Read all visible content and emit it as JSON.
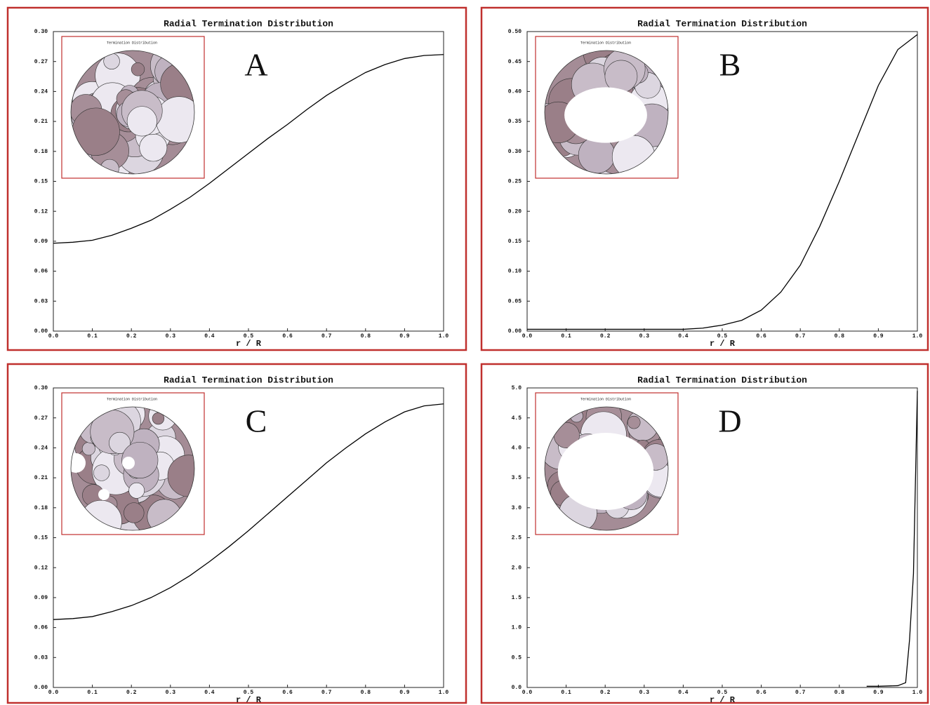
{
  "chart_data": [
    {
      "type": "line",
      "title": "Radial Termination Distribution",
      "label": "A",
      "inset_title": "Termination Distribution",
      "xlabel": "r / R",
      "x": [
        0,
        0.05,
        0.1,
        0.15,
        0.2,
        0.25,
        0.3,
        0.35,
        0.4,
        0.45,
        0.5,
        0.55,
        0.6,
        0.65,
        0.7,
        0.75,
        0.8,
        0.85,
        0.9,
        0.95,
        1.0
      ],
      "values": [
        0.088,
        0.089,
        0.091,
        0.096,
        0.103,
        0.111,
        0.122,
        0.134,
        0.148,
        0.163,
        0.178,
        0.193,
        0.207,
        0.222,
        0.236,
        0.248,
        0.259,
        0.267,
        0.273,
        0.276,
        0.277
      ],
      "color": "#000000",
      "xlim": [
        0,
        1
      ],
      "ylim": [
        0,
        0.3
      ],
      "xticks": [
        {
          "value": 0,
          "label": "0.0"
        },
        0.1,
        0.2,
        0.3,
        0.4,
        0.5,
        0.6,
        0.7,
        0.8,
        0.9,
        {
          "value": 1,
          "label": "1.0"
        }
      ],
      "yticks": [
        {
          "value": 0,
          "label": "0.00"
        },
        0.03,
        0.06,
        0.09,
        0.12,
        0.15,
        0.18,
        0.21,
        0.24,
        0.27,
        {
          "value": 0.3,
          "label": "0.30"
        }
      ]
    },
    {
      "type": "line",
      "title": "Radial Termination Distribution",
      "label": "B",
      "inset_title": "Termination Distribution",
      "xlabel": "r / R",
      "x": [
        0,
        0.05,
        0.1,
        0.15,
        0.2,
        0.25,
        0.3,
        0.35,
        0.4,
        0.45,
        0.5,
        0.55,
        0.6,
        0.65,
        0.7,
        0.75,
        0.8,
        0.85,
        0.9,
        0.95,
        1.0
      ],
      "values": [
        0.003,
        0.003,
        0.003,
        0.003,
        0.003,
        0.003,
        0.003,
        0.003,
        0.003,
        0.005,
        0.01,
        0.018,
        0.035,
        0.065,
        0.11,
        0.175,
        0.25,
        0.33,
        0.41,
        0.47,
        0.495
      ],
      "color": "#000000",
      "xlim": [
        0,
        1
      ],
      "ylim": [
        0,
        0.5
      ],
      "xticks": [
        {
          "value": 0,
          "label": "0.0"
        },
        0.1,
        0.2,
        0.3,
        0.4,
        0.5,
        0.6,
        0.7,
        0.8,
        0.9,
        {
          "value": 1,
          "label": "1.0"
        }
      ],
      "yticks": [
        {
          "value": 0,
          "label": "0.00"
        },
        0.05,
        {
          "value": 0.1,
          "label": "0.10"
        },
        0.15,
        {
          "value": 0.2,
          "label": "0.20"
        },
        0.25,
        {
          "value": 0.3,
          "label": "0.30"
        },
        0.35,
        {
          "value": 0.4,
          "label": "0.40"
        },
        0.45,
        {
          "value": 0.5,
          "label": "0.50"
        }
      ]
    },
    {
      "type": "line",
      "title": "Radial Termination Distribution",
      "label": "C",
      "inset_title": "Termination Distribution",
      "xlabel": "r / R",
      "x": [
        0,
        0.05,
        0.1,
        0.15,
        0.2,
        0.25,
        0.3,
        0.35,
        0.4,
        0.45,
        0.5,
        0.55,
        0.6,
        0.65,
        0.7,
        0.75,
        0.8,
        0.85,
        0.9,
        0.95,
        1.0
      ],
      "values": [
        0.068,
        0.069,
        0.071,
        0.076,
        0.082,
        0.09,
        0.1,
        0.112,
        0.126,
        0.141,
        0.157,
        0.174,
        0.191,
        0.208,
        0.225,
        0.24,
        0.254,
        0.266,
        0.276,
        0.282,
        0.284
      ],
      "color": "#000000",
      "xlim": [
        0,
        1
      ],
      "ylim": [
        0,
        0.3
      ],
      "xticks": [
        {
          "value": 0,
          "label": "0.0"
        },
        0.1,
        0.2,
        0.3,
        0.4,
        0.5,
        0.6,
        0.7,
        0.8,
        0.9,
        {
          "value": 1,
          "label": "1.0"
        }
      ],
      "yticks": [
        {
          "value": 0,
          "label": "0.00"
        },
        0.03,
        0.06,
        0.09,
        0.12,
        0.15,
        0.18,
        0.21,
        0.24,
        0.27,
        {
          "value": 0.3,
          "label": "0.30"
        }
      ]
    },
    {
      "type": "line",
      "title": "Radial Termination Distribution",
      "label": "D",
      "inset_title": "Termination Distribution",
      "xlabel": "r / R",
      "x": [
        0.87,
        0.9,
        0.95,
        0.97,
        0.98,
        0.99,
        1.0
      ],
      "values": [
        0.02,
        0.02,
        0.03,
        0.08,
        0.8,
        1.9,
        4.95
      ],
      "color": "#000000",
      "xlim": [
        0,
        1
      ],
      "ylim": [
        0,
        5
      ],
      "xticks": [
        {
          "value": 0,
          "label": "0.0"
        },
        0.1,
        0.2,
        0.3,
        0.4,
        0.5,
        0.6,
        0.7,
        0.8,
        0.9,
        {
          "value": 1,
          "label": "1.0"
        }
      ],
      "yticks": [
        {
          "value": 0,
          "label": "0.0"
        },
        0.5,
        {
          "value": 1,
          "label": "1.0"
        },
        1.5,
        {
          "value": 2,
          "label": "2.0"
        },
        2.5,
        {
          "value": 3,
          "label": "3.0"
        },
        3.5,
        {
          "value": 4,
          "label": "4.0"
        },
        4.5,
        {
          "value": 5,
          "label": "5.0"
        }
      ]
    }
  ]
}
